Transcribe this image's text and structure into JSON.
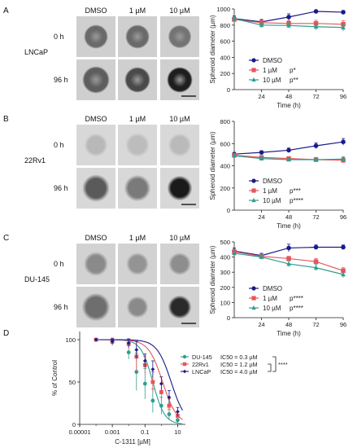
{
  "colors": {
    "dmso": "#1a1a8c",
    "um1": "#e8555a",
    "um10": "#2e9e8f",
    "dose_du145": "#2e9e8f",
    "dose_22rv1": "#e8555a",
    "dose_lncap": "#1a1a8c"
  },
  "panels": [
    {
      "letter": "A",
      "cell_line": "LNCaP",
      "image_cols": [
        "DMSO",
        "1 µM",
        "10 µM"
      ],
      "image_rows": [
        "0 h",
        "96 h"
      ],
      "spheroid_shades": [
        [
          "#6a6a6a",
          "#6a6a6a",
          "#747474"
        ],
        [
          "#5e5e5e",
          "#4a4a4a",
          "#1e1e1e"
        ]
      ],
      "spheroid_sizes": [
        [
          0.62,
          0.62,
          0.6
        ],
        [
          0.7,
          0.66,
          0.66
        ]
      ],
      "spheroid_style": "ring"
    },
    {
      "letter": "B",
      "cell_line": "22Rv1",
      "image_cols": [
        "DMSO",
        "1 µM",
        "10 µM"
      ],
      "image_rows": [
        "0 h",
        "96 h"
      ],
      "spheroid_shades": [
        [
          "#b8b8b8",
          "#bcbcbc",
          "#bababa"
        ],
        [
          "#5a5a5a",
          "#7a7a7a",
          "#1a1a1a"
        ]
      ],
      "spheroid_sizes": [
        [
          0.6,
          0.62,
          0.6
        ],
        [
          0.7,
          0.68,
          0.64
        ]
      ],
      "spheroid_style": "soft"
    },
    {
      "letter": "C",
      "cell_line": "DU-145",
      "image_cols": [
        "DMSO",
        "1 µM",
        "10 µM"
      ],
      "image_rows": [
        "0 h",
        "96 h"
      ],
      "spheroid_shades": [
        [
          "#8a8a8a",
          "#949494",
          "#8e8e8e"
        ],
        [
          "#6e6e6e",
          "#8a8a8a",
          "#2a2a2a"
        ]
      ],
      "spheroid_sizes": [
        [
          0.62,
          0.58,
          0.58
        ],
        [
          0.72,
          0.56,
          0.6
        ]
      ],
      "spheroid_style": "fuzzy"
    },
    {
      "letter": "D"
    }
  ],
  "chart_data": [
    {
      "type": "line",
      "panel": "A",
      "xlabel": "Time (h)",
      "ylabel": "Spheroid diameter (µm)",
      "xlim": [
        0,
        96
      ],
      "ylim": [
        0,
        1000
      ],
      "xticks": [
        24,
        48,
        72,
        96
      ],
      "yticks": [
        0,
        200,
        400,
        600,
        800,
        1000
      ],
      "x": [
        0,
        24,
        48,
        72,
        96
      ],
      "series": [
        {
          "name": "DMSO",
          "key": "dmso",
          "marker": "circle",
          "values": [
            880,
            840,
            900,
            970,
            960
          ],
          "err": [
            35,
            30,
            40,
            15,
            20
          ],
          "sig": ""
        },
        {
          "name": "1 µM",
          "key": "um1",
          "marker": "square",
          "values": [
            870,
            830,
            820,
            820,
            810
          ],
          "err": [
            30,
            30,
            35,
            40,
            45
          ],
          "sig": "p*"
        },
        {
          "name": "10 µM",
          "key": "um10",
          "marker": "triangle",
          "values": [
            880,
            800,
            795,
            780,
            770
          ],
          "err": [
            30,
            30,
            35,
            40,
            45
          ],
          "sig": "p**"
        }
      ]
    },
    {
      "type": "line",
      "panel": "B",
      "xlabel": "Time (h)",
      "ylabel": "Spheroid diameter (µm)",
      "xlim": [
        0,
        96
      ],
      "ylim": [
        0,
        800
      ],
      "xticks": [
        24,
        48,
        72,
        96
      ],
      "yticks": [
        0,
        200,
        400,
        600,
        800
      ],
      "x": [
        0,
        24,
        48,
        72,
        96
      ],
      "series": [
        {
          "name": "DMSO",
          "key": "dmso",
          "marker": "circle",
          "values": [
            505,
            520,
            540,
            580,
            615
          ],
          "err": [
            15,
            15,
            20,
            25,
            30
          ],
          "sig": ""
        },
        {
          "name": "1 µM",
          "key": "um1",
          "marker": "square",
          "values": [
            495,
            475,
            465,
            455,
            450
          ],
          "err": [
            15,
            15,
            15,
            20,
            25
          ],
          "sig": "p***"
        },
        {
          "name": "10 µM",
          "key": "um10",
          "marker": "triangle",
          "values": [
            490,
            465,
            455,
            455,
            460
          ],
          "err": [
            15,
            15,
            15,
            15,
            20
          ],
          "sig": "p****"
        }
      ]
    },
    {
      "type": "line",
      "panel": "C",
      "xlabel": "Time (h)",
      "ylabel": "Spheroid diameter (µm)",
      "xlim": [
        0,
        96
      ],
      "ylim": [
        0,
        500
      ],
      "xticks": [
        24,
        48,
        72,
        96
      ],
      "yticks": [
        0,
        100,
        200,
        300,
        400,
        500
      ],
      "x": [
        0,
        24,
        48,
        72,
        96
      ],
      "series": [
        {
          "name": "DMSO",
          "key": "dmso",
          "marker": "circle",
          "values": [
            440,
            410,
            460,
            465,
            465
          ],
          "err": [
            20,
            15,
            25,
            15,
            15
          ],
          "sig": ""
        },
        {
          "name": "1 µM",
          "key": "um1",
          "marker": "square",
          "values": [
            435,
            405,
            390,
            370,
            310
          ],
          "err": [
            15,
            15,
            15,
            20,
            20
          ],
          "sig": "p****"
        },
        {
          "name": "10 µM",
          "key": "um10",
          "marker": "triangle",
          "values": [
            425,
            400,
            355,
            330,
            285
          ],
          "err": [
            15,
            15,
            20,
            20,
            20
          ],
          "sig": "p****"
        }
      ]
    },
    {
      "type": "scatter",
      "panel": "D",
      "xlabel": "C-1311 [µM]",
      "ylabel": "% of Control",
      "log_x": true,
      "xlim": [
        1e-05,
        30
      ],
      "ylim": [
        0,
        100
      ],
      "xtick_values": [
        1e-05,
        0.001,
        0.1,
        10
      ],
      "xticks": [
        "0.00001",
        "0.001",
        "0.1",
        "10"
      ],
      "yticks": [
        0,
        50,
        100
      ],
      "significance": "****",
      "series": [
        {
          "name": "DU-145",
          "ic50_label": "IC50 = 0.3  µM",
          "ic50": 0.3,
          "hill": 1.2,
          "key": "dose_du145",
          "marker": "circle",
          "x": [
            0.0001,
            0.001,
            0.01,
            0.03,
            0.1,
            0.3,
            1,
            3,
            10
          ],
          "y": [
            100,
            97,
            85,
            62,
            48,
            28,
            22,
            12,
            5
          ],
          "err": [
            0,
            4,
            8,
            22,
            18,
            14,
            10,
            6,
            4
          ]
        },
        {
          "name": "22Rv1",
          "ic50_label": "IC50 = 1.2  µM",
          "ic50": 1.2,
          "hill": 1.0,
          "key": "dose_22rv1",
          "marker": "square",
          "x": [
            0.0001,
            0.001,
            0.01,
            0.03,
            0.1,
            0.3,
            1,
            3,
            10
          ],
          "y": [
            100,
            98,
            95,
            80,
            70,
            50,
            38,
            22,
            10
          ],
          "err": [
            0,
            4,
            6,
            18,
            10,
            12,
            10,
            8,
            5
          ]
        },
        {
          "name": "LNCaP",
          "ic50_label": "IC50 = 4.0  µM",
          "ic50": 4.0,
          "hill": 1.0,
          "key": "dose_lncap",
          "marker": "diamond",
          "x": [
            0.0001,
            0.001,
            0.01,
            0.03,
            0.1,
            0.3,
            1,
            3,
            10
          ],
          "y": [
            100,
            98,
            96,
            88,
            75,
            65,
            48,
            32,
            15
          ],
          "err": [
            0,
            3,
            5,
            10,
            8,
            10,
            8,
            8,
            5
          ]
        }
      ]
    }
  ]
}
